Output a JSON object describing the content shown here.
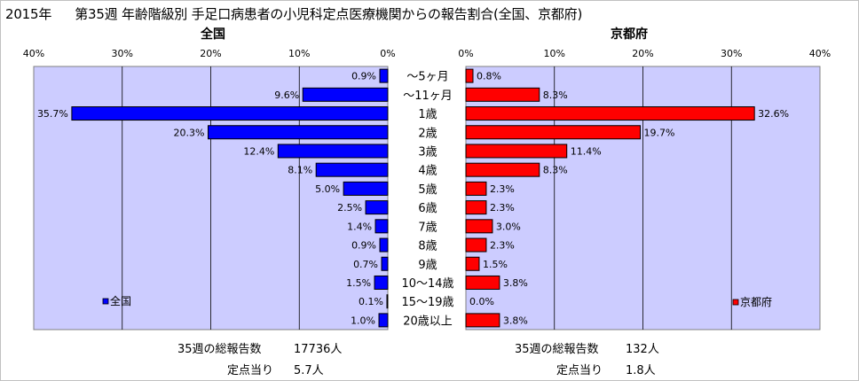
{
  "title": {
    "year": "2015年",
    "text": "第35週 年齢階級別 手足口病患者の小児科定点医療機関からの報告割合(全国、京都府)"
  },
  "chart_data": [
    {
      "type": "bar",
      "title": "全国",
      "orientation": "horizontal",
      "direction": "right-to-left",
      "categories": [
        "～5ヶ月",
        "～11ヶ月",
        "1歳",
        "2歳",
        "3歳",
        "4歳",
        "5歳",
        "6歳",
        "7歳",
        "8歳",
        "9歳",
        "10～14歳",
        "15～19歳",
        "20歳以上"
      ],
      "values": [
        0.9,
        9.6,
        35.7,
        20.3,
        12.4,
        8.1,
        5.0,
        2.5,
        1.4,
        0.9,
        0.7,
        1.5,
        0.1,
        1.0
      ],
      "labels": [
        "0.9%",
        "9.6%",
        "35.7%",
        "20.3%",
        "12.4%",
        "8.1%",
        "5.0%",
        "2.5%",
        "1.4%",
        "0.9%",
        "0.7%",
        "1.5%",
        "0.1%",
        "1.0%"
      ],
      "series_name": "全国",
      "ylim": [
        0,
        40
      ],
      "ticks": [
        "40%",
        "30%",
        "20%",
        "10%",
        "0%"
      ],
      "bar_color": "#0000ff",
      "grid": true,
      "legend": "bottom-left"
    },
    {
      "type": "bar",
      "title": "京都府",
      "orientation": "horizontal",
      "direction": "left-to-right",
      "categories": [
        "～5ヶ月",
        "～11ヶ月",
        "1歳",
        "2歳",
        "3歳",
        "4歳",
        "5歳",
        "6歳",
        "7歳",
        "8歳",
        "9歳",
        "10～14歳",
        "15～19歳",
        "20歳以上"
      ],
      "values": [
        0.8,
        8.3,
        32.6,
        19.7,
        11.4,
        8.3,
        2.3,
        2.3,
        3.0,
        2.3,
        1.5,
        3.8,
        0.0,
        3.8
      ],
      "labels": [
        "0.8%",
        "8.3%",
        "32.6%",
        "19.7%",
        "11.4%",
        "8.3%",
        "2.3%",
        "2.3%",
        "3.0%",
        "2.3%",
        "1.5%",
        "3.8%",
        "0.0%",
        "3.8%"
      ],
      "series_name": "京都府",
      "ylim": [
        0,
        40
      ],
      "ticks": [
        "0%",
        "10%",
        "20%",
        "30%",
        "40%"
      ],
      "bar_color": "#ff0000",
      "grid": true,
      "legend": "bottom-right"
    }
  ],
  "plot_bg": "#ccccff",
  "footer": {
    "national_total_label": "35週の総報告数",
    "national_total_value": "17736人",
    "national_per_label": "定点当り",
    "national_per_value": "5.7人",
    "kyoto_total_label": "35週の総報告数",
    "kyoto_total_value": "132人",
    "kyoto_per_label": "定点当り",
    "kyoto_per_value": "1.8人"
  }
}
